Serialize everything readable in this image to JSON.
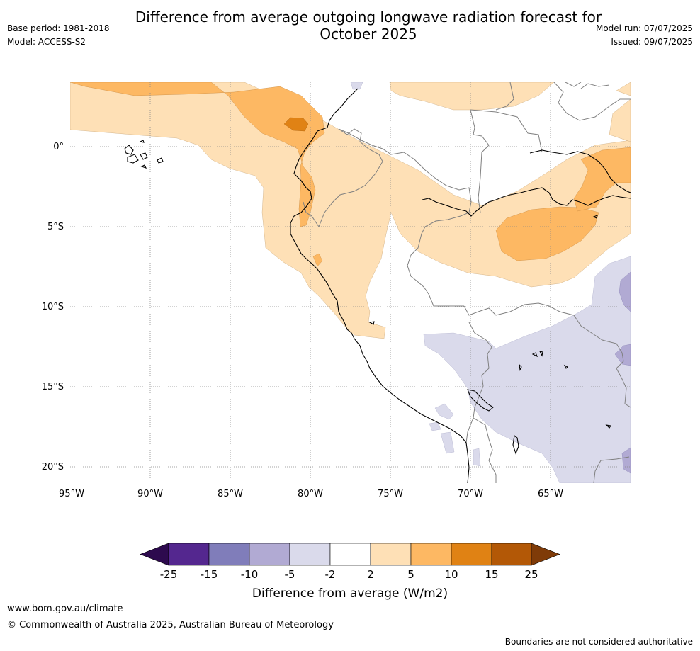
{
  "header": {
    "title_line1": "Difference from average outgoing longwave radiation forecast for",
    "title_line2": "October 2025",
    "base_period": "Base period: 1981-2018",
    "model": "Model: ACCESS-S2",
    "model_run": "Model run: 07/07/2025",
    "issued": "Issued: 09/07/2025"
  },
  "map": {
    "lat_labels": [
      "0°",
      "5°S",
      "10°S",
      "15°S",
      "20°S"
    ],
    "lon_labels": [
      "95°W",
      "90°W",
      "85°W",
      "80°W",
      "75°W",
      "70°W",
      "65°W"
    ],
    "colors": {
      "purple_dark": "#2d0a4e",
      "purple": "#54278f",
      "purple_mid": "#807dba",
      "purple_light": "#b1aad3",
      "lavender": "#dadaeb",
      "white": "#ffffff",
      "peach": "#fee0b6",
      "orange_light": "#fdb863",
      "orange": "#e08214",
      "brown": "#b35806",
      "brown_dark": "#7f3b08"
    }
  },
  "colorbar": {
    "ticks": [
      "-25",
      "-15",
      "-10",
      "-5",
      "-2",
      "2",
      "5",
      "10",
      "15",
      "25"
    ],
    "label": "Difference from average (W/m2)"
  },
  "footer": {
    "url": "www.bom.gov.au/climate",
    "copyright": "© Commonwealth of Australia 2025, Australian Bureau of Meteorology",
    "disclaimer": "Boundaries are not considered authoritative"
  }
}
